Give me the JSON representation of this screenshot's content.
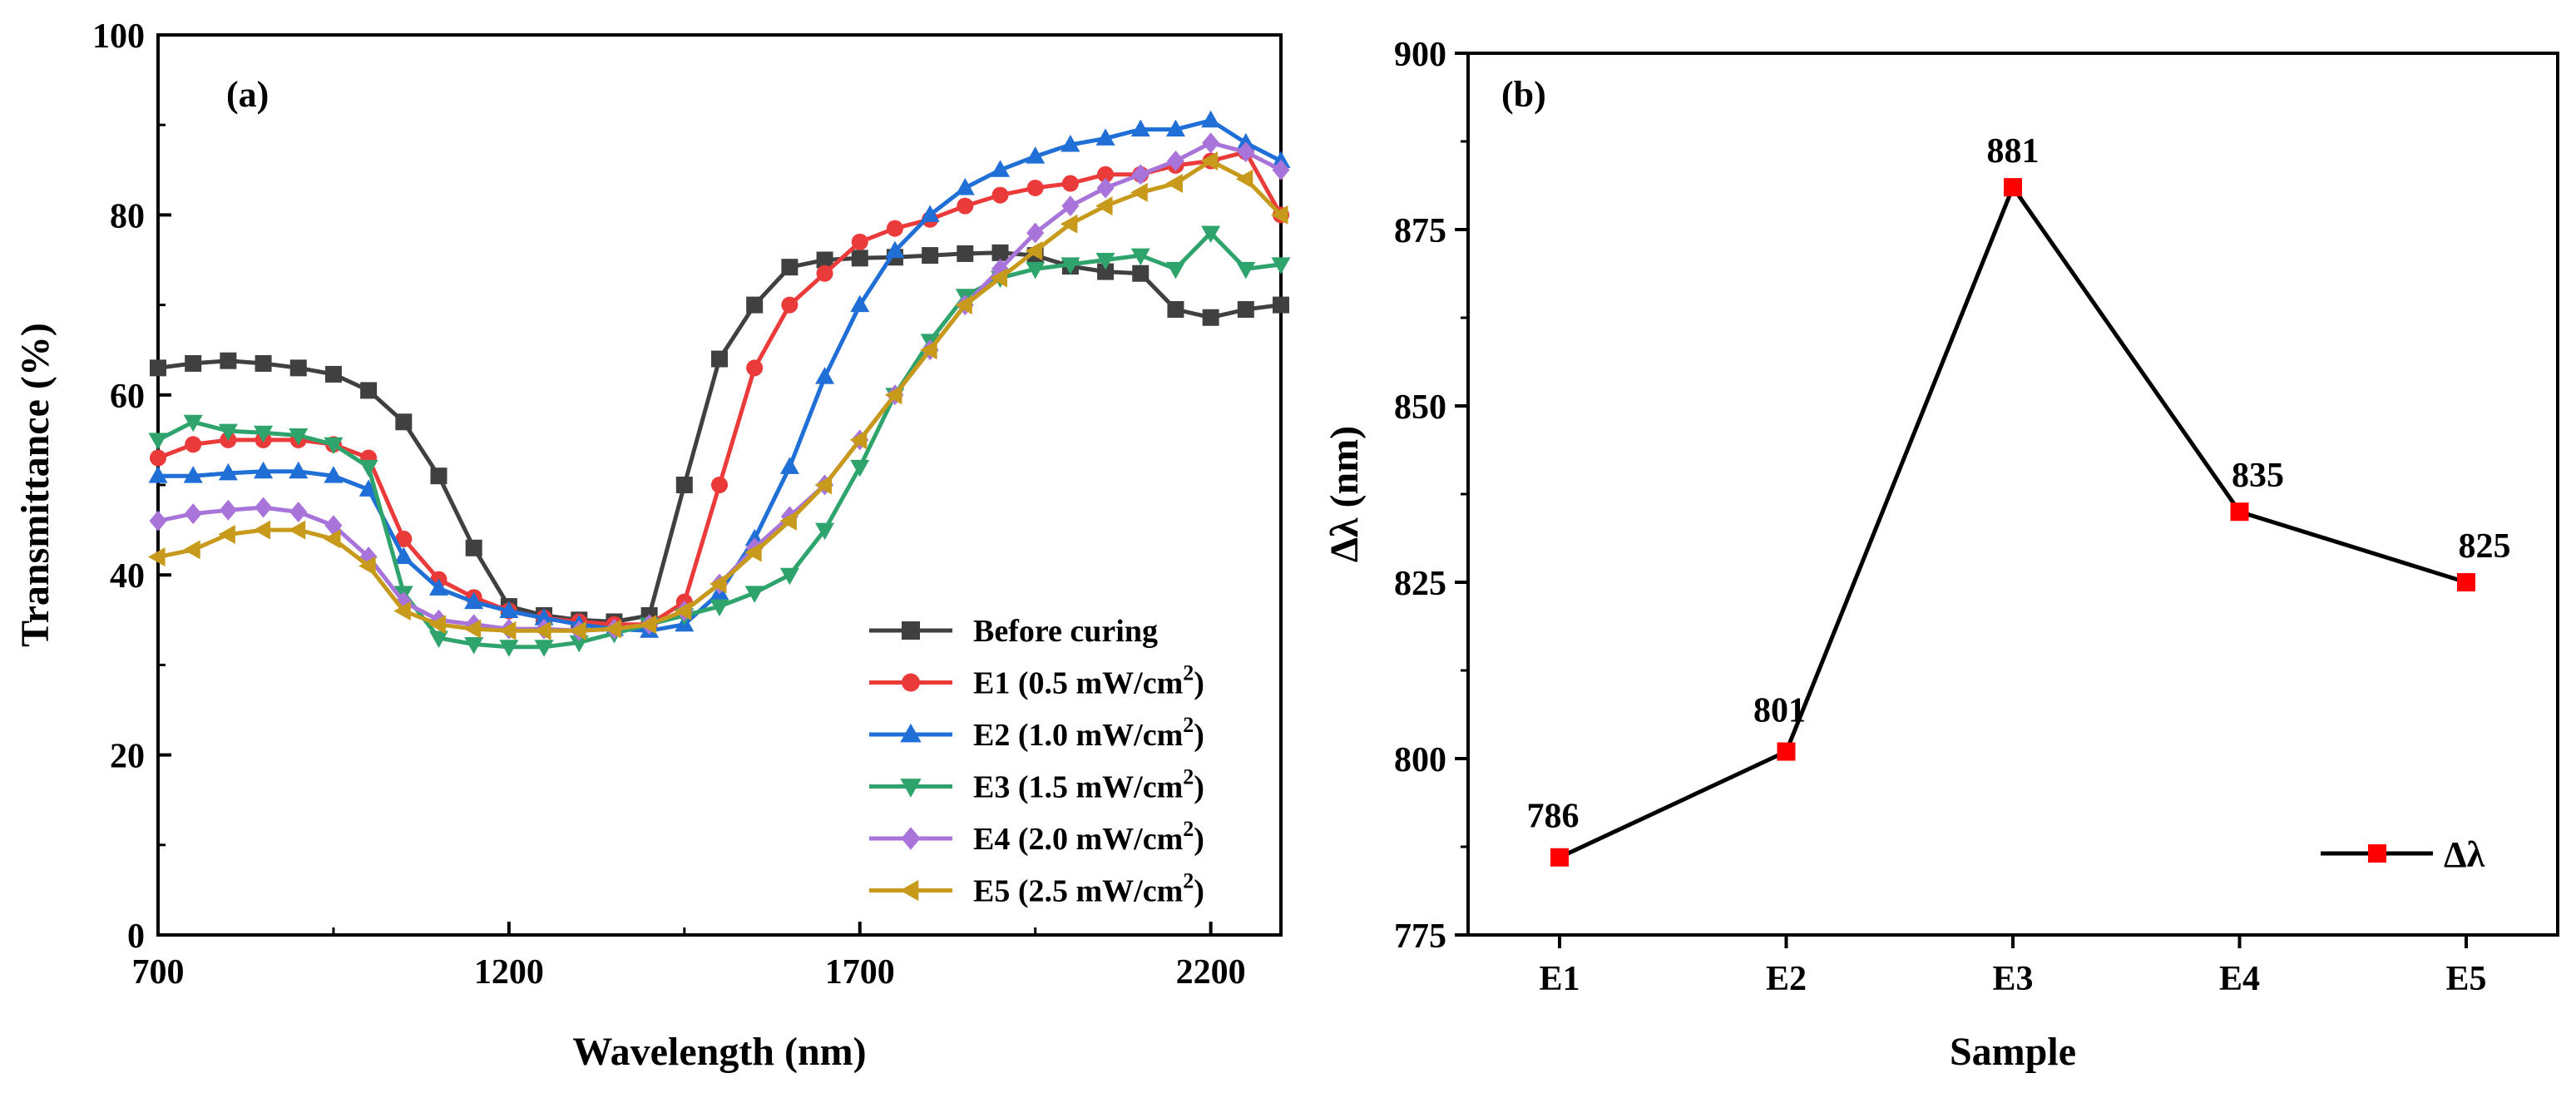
{
  "chart_data": [
    {
      "panel": "(a)",
      "type": "line",
      "xlabel": "Wavelength (nm)",
      "ylabel": "Transmittance (%)",
      "xlim": [
        700,
        2300
      ],
      "ylim": [
        0,
        100
      ],
      "xticks": [
        700,
        1200,
        1700,
        2200
      ],
      "yticks": [
        0,
        20,
        40,
        60,
        80,
        100
      ],
      "grid": false,
      "legend_position": "lower-right",
      "x": [
        700,
        750,
        800,
        850,
        900,
        950,
        1000,
        1050,
        1100,
        1150,
        1200,
        1250,
        1300,
        1350,
        1400,
        1450,
        1500,
        1550,
        1600,
        1650,
        1700,
        1750,
        1800,
        1850,
        1900,
        1950,
        2000,
        2050,
        2100,
        2150,
        2200,
        2250,
        2300
      ],
      "series": [
        {
          "name": "Before curing",
          "sup": "",
          "marker": "square",
          "color": "#404040",
          "values": [
            63,
            63.5,
            63.8,
            63.5,
            63,
            62.3,
            60.5,
            57,
            51,
            43,
            36.5,
            35.5,
            35,
            34.8,
            35.5,
            50,
            64,
            70,
            74.2,
            75,
            75.2,
            75.3,
            75.5,
            75.7,
            75.8,
            75.5,
            74.3,
            73.7,
            73.5,
            69.5,
            68.6,
            69.5,
            70
          ]
        },
        {
          "name": "E1 (0.5 mW/cm",
          "sup": "2",
          "supAfter": ")",
          "marker": "circle",
          "color": "#ea3a3a",
          "values": [
            53,
            54.5,
            55,
            55,
            55,
            54.5,
            53,
            44,
            39.5,
            37.5,
            36,
            35.2,
            34.8,
            34.5,
            34.5,
            37,
            50,
            63,
            70,
            73.5,
            77,
            78.5,
            79.5,
            81,
            82.2,
            83,
            83.5,
            84.5,
            84.5,
            85.5,
            86,
            87,
            80
          ]
        },
        {
          "name": "E2 (1.0 mW/cm",
          "sup": "2",
          "supAfter": ")",
          "marker": "triangle-up",
          "color": "#1f6fd6",
          "values": [
            51,
            51,
            51.3,
            51.5,
            51.5,
            51,
            49.5,
            42,
            38.5,
            37,
            36,
            35.2,
            34.5,
            34,
            33.8,
            34.5,
            38,
            44,
            52,
            62,
            70,
            76,
            80,
            83,
            85,
            86.5,
            87.8,
            88.5,
            89.5,
            89.5,
            90.5,
            88,
            86
          ]
        },
        {
          "name": "E3 (1.5 mW/cm",
          "sup": "2",
          "supAfter": ")",
          "marker": "triangle-down",
          "color": "#2ea36b",
          "values": [
            55,
            57,
            56,
            55.8,
            55.5,
            54.5,
            52,
            38,
            33,
            32.3,
            32,
            32,
            32.5,
            33.5,
            34.5,
            35.5,
            36.5,
            38,
            40,
            45,
            52,
            60,
            66,
            71,
            73,
            74,
            74.5,
            75,
            75.5,
            74,
            78,
            74,
            74.5
          ]
        },
        {
          "name": "E4 (2.0 mW/cm",
          "sup": "2",
          "supAfter": ")",
          "marker": "diamond",
          "color": "#a974d9",
          "values": [
            46,
            46.8,
            47.2,
            47.5,
            47,
            45.5,
            42,
            37,
            35,
            34.5,
            34,
            34,
            33.8,
            34,
            34.5,
            36,
            39,
            43,
            46.5,
            50,
            55,
            60,
            65,
            70,
            74,
            78,
            81,
            83,
            84.5,
            86,
            88,
            87,
            85
          ]
        },
        {
          "name": "E5 (2.5 mW/cm",
          "sup": "2",
          "supAfter": ")",
          "marker": "triangle-left",
          "color": "#c79a1b",
          "values": [
            42,
            42.8,
            44.5,
            45,
            45,
            44,
            41,
            36,
            34.5,
            34,
            33.8,
            33.8,
            33.8,
            34,
            34.5,
            36,
            39,
            42.5,
            46,
            50,
            55,
            60,
            65,
            70,
            73,
            76,
            79,
            81,
            82.5,
            83.5,
            86,
            84,
            80
          ]
        }
      ]
    },
    {
      "panel": "(b)",
      "type": "line",
      "xlabel": "Sample",
      "ylabel": "Δλ (nm)",
      "categories": [
        "E1",
        "E2",
        "E3",
        "E4",
        "E5"
      ],
      "values": [
        786,
        801,
        881,
        835,
        825
      ],
      "data_labels": [
        "786",
        "801",
        "881",
        "835",
        "825"
      ],
      "ylim": [
        775,
        900
      ],
      "yticks": [
        775,
        800,
        825,
        850,
        875,
        900
      ],
      "grid": false,
      "legend_position": "lower-right",
      "series_name": "Δλ",
      "line_color": "#000000",
      "marker_color": "#ff0000"
    }
  ]
}
